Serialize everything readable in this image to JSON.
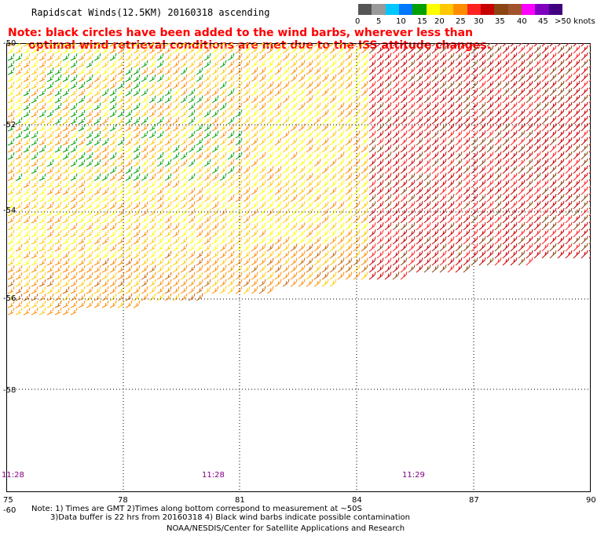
{
  "title": "Rapidscat Winds(12.5KM) 20160318 ascending",
  "note": {
    "line1": "Note: black circles have been added to the wind barbs, wherever less than",
    "line2": "optimal wind retrieval conditions are met due to the ISS attitude changes."
  },
  "legend": {
    "labels": [
      "0",
      "5",
      "10",
      "15",
      "20",
      "25",
      "30",
      "35",
      "40",
      "45",
      ">50 knots"
    ],
    "colors": [
      "#555555",
      "#999999",
      "#00c8ff",
      "#0078ff",
      "#00a000",
      "#ffff00",
      "#ffc800",
      "#ff8c00",
      "#ff2020",
      "#c80000",
      "#8b4513",
      "#a0522d",
      "#ff00ff",
      "#8000c0",
      "#400080"
    ]
  },
  "axes": {
    "x_ticks": [
      "75",
      "78",
      "81",
      "84",
      "87",
      "90"
    ],
    "y_ticks": [
      "-50",
      "-52",
      "-54",
      "-56",
      "-58",
      "-60"
    ]
  },
  "times": [
    "11:28",
    "11:28",
    "11:29"
  ],
  "footer": {
    "line1": "Note: 1) Times are GMT 2)Times along bottom correspond to measurement at ~50S",
    "line2": "3)Data buffer is 22 hrs from 20160318 4) Black wind barbs indicate possible contamination",
    "line3": "NOAA/NESDIS/Center for Satellite Applications and Research"
  }
}
